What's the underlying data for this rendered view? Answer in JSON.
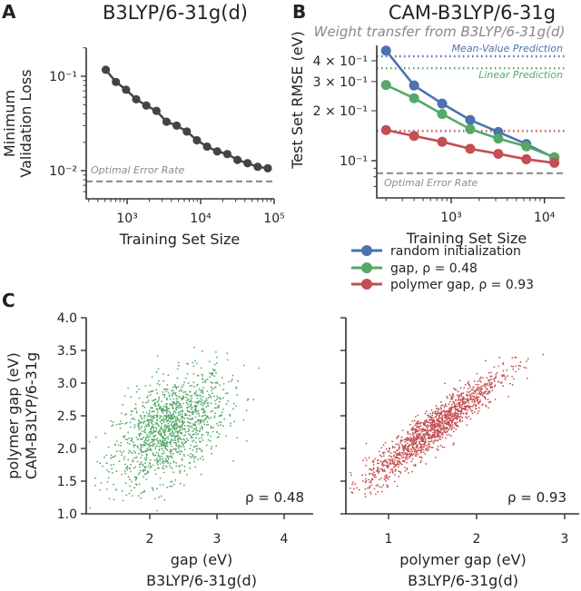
{
  "colors": {
    "dark": "#444444",
    "blue": "#4c72b0",
    "green": "#55a868",
    "red": "#c44e52",
    "gray": "#8c8c8c"
  },
  "chart_data": [
    {
      "panel": "A",
      "type": "line",
      "title": "B3LYP/6-31g(d)",
      "xlabel": "Training Set Size",
      "ylabel": [
        "Minimum",
        "Validation Loss"
      ],
      "xscale": "log",
      "yscale": "log",
      "xlim": [
        280,
        100000
      ],
      "ylim": [
        0.005,
        0.2
      ],
      "xticks": [
        {
          "value": 1000,
          "label": "10³"
        },
        {
          "value": 10000,
          "label": "10⁴"
        },
        {
          "value": 100000,
          "label": "10⁵"
        }
      ],
      "yticks": [
        {
          "value": 0.1,
          "label": "10⁻¹"
        },
        {
          "value": 0.01,
          "label": "10⁻²"
        }
      ],
      "x": [
        513,
        705,
        968,
        1329,
        1825,
        2506,
        3441,
        4725,
        6488,
        8909,
        12233,
        16798,
        23065,
        31671,
        43488,
        59714,
        82000
      ],
      "y": [
        0.117,
        0.087,
        0.072,
        0.057,
        0.049,
        0.043,
        0.033,
        0.03,
        0.026,
        0.021,
        0.018,
        0.016,
        0.015,
        0.013,
        0.012,
        0.011,
        0.0106
      ],
      "reference_lines": [
        {
          "label": "Optimal Error Rate",
          "value": 0.0077,
          "style": "dashed",
          "color": "#8c8c8c"
        }
      ]
    },
    {
      "panel": "B",
      "type": "line",
      "title": "CAM-B3LYP/6-31g",
      "subtitle": "Weight transfer from B3LYP/6-31g(d)",
      "xlabel": "Training Set Size",
      "ylabel": "Test Set RMSE (eV)",
      "xscale": "log",
      "yscale": "log",
      "xlim": [
        160,
        17000
      ],
      "ylim": [
        0.062,
        0.5
      ],
      "xticks": [
        {
          "value": 1000,
          "label": "10³"
        },
        {
          "value": 10000,
          "label": "10⁴"
        }
      ],
      "yticks": [
        {
          "value": 0.4,
          "label": "4 × 10⁻¹"
        },
        {
          "value": 0.3,
          "label": "3 × 10⁻¹"
        },
        {
          "value": 0.2,
          "label": "2 × 10⁻¹"
        },
        {
          "value": 0.1,
          "label": "10⁻¹"
        }
      ],
      "x": [
        200,
        400,
        800,
        1600,
        3200,
        6400,
        12800
      ],
      "series": [
        {
          "name": "random initialization",
          "color": "#4c72b0",
          "values": [
            0.461,
            0.284,
            0.221,
            0.176,
            0.149,
            0.126,
            0.104
          ]
        },
        {
          "name": "gap, ρ = 0.48",
          "color": "#55a868",
          "values": [
            0.286,
            0.238,
            0.191,
            0.155,
            0.136,
            0.122,
            0.105
          ]
        },
        {
          "name": "polymer gap, ρ = 0.93",
          "color": "#c44e52",
          "values": [
            0.153,
            0.141,
            0.13,
            0.118,
            0.11,
            0.102,
            0.097
          ]
        }
      ],
      "reference_lines": [
        {
          "label": "Mean-Value Prediction",
          "value": 0.426,
          "style": "dotted",
          "color": "#4c72b0"
        },
        {
          "label": "Linear Prediction",
          "value": 0.361,
          "style": "dotted",
          "color": "#55a868"
        },
        {
          "label": "",
          "value": 0.151,
          "style": "dotted",
          "color": "#c44e52"
        },
        {
          "label": "Optimal Error Rate",
          "value": 0.084,
          "style": "dashed",
          "color": "#8c8c8c"
        }
      ],
      "legend_position": "below"
    },
    {
      "panel": "C-left",
      "type": "scatter",
      "xlabel": [
        "gap (eV)",
        "B3LYP/6-31g(d)"
      ],
      "ylabel": [
        "polymer gap (eV)",
        "CAM-B3LYP/6-31g"
      ],
      "xlim": [
        1.05,
        4.35
      ],
      "ylim": [
        1.0,
        4.0
      ],
      "xticks": [
        2,
        3,
        4
      ],
      "yticks": [
        "1.0",
        "1.5",
        "2.0",
        "2.5",
        "3.0",
        "3.5",
        "4.0"
      ],
      "color": "#55a868",
      "rho": 0.48,
      "annotation": "ρ = 0.48"
    },
    {
      "panel": "C-right",
      "type": "scatter",
      "xlabel": [
        "polymer gap (eV)",
        "B3LYP/6-31g(d)"
      ],
      "xlim": [
        0.52,
        3.16
      ],
      "ylim": [
        1.0,
        4.0
      ],
      "xticks": [
        1,
        2,
        3
      ],
      "yticks": [
        "1.0",
        "1.5",
        "2.0",
        "2.5",
        "3.0",
        "3.5",
        "4.0"
      ],
      "color": "#c44e52",
      "rho": 0.93,
      "annotation": "ρ = 0.93"
    }
  ],
  "panel_letters": [
    "A",
    "B",
    "C"
  ]
}
